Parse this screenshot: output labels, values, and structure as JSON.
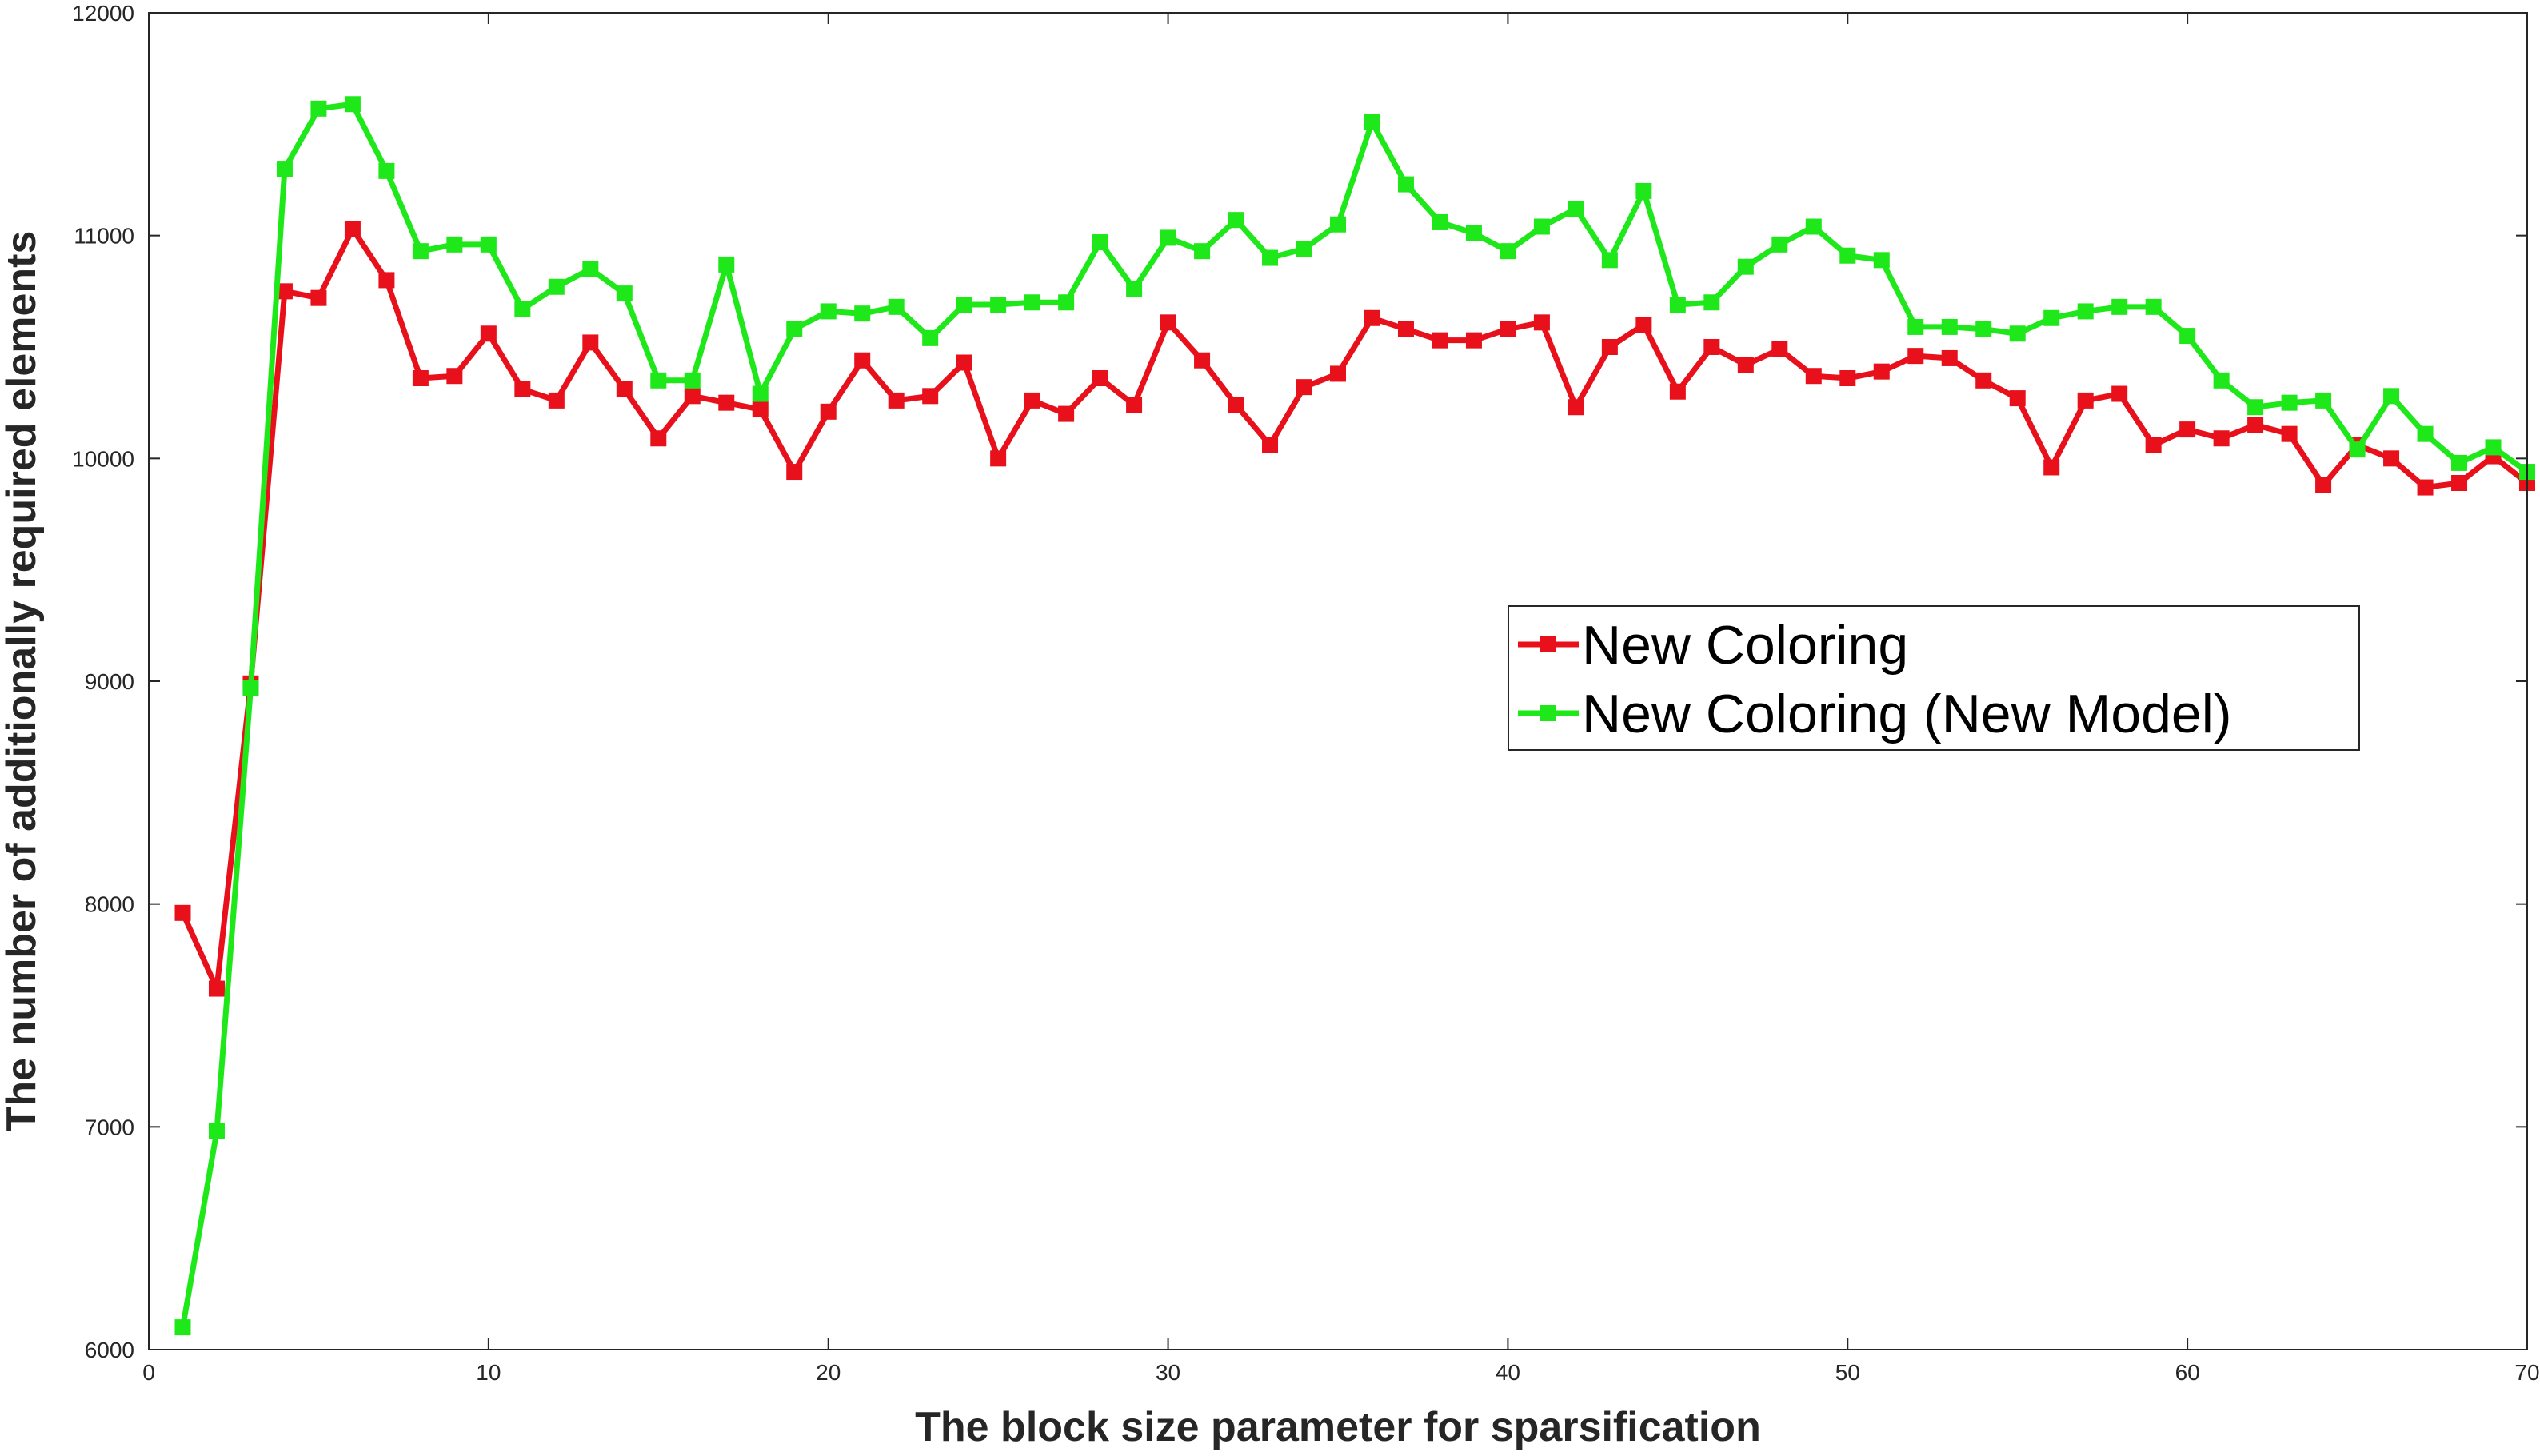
{
  "chart_data": {
    "type": "line",
    "xlabel": "The block size parameter for sparsification",
    "ylabel": "The number of additionally required elements",
    "xlim": [
      0,
      70
    ],
    "ylim": [
      6000,
      12000
    ],
    "xticks": [
      0,
      10,
      20,
      30,
      40,
      50,
      60,
      70
    ],
    "yticks": [
      6000,
      7000,
      8000,
      9000,
      10000,
      11000,
      12000
    ],
    "grid": false,
    "legend_position": "center-right",
    "x": [
      1,
      2,
      3,
      4,
      5,
      6,
      7,
      8,
      9,
      10,
      11,
      12,
      13,
      14,
      15,
      16,
      17,
      18,
      19,
      20,
      21,
      22,
      23,
      24,
      25,
      26,
      27,
      28,
      29,
      30,
      31,
      32,
      33,
      34,
      35,
      36,
      37,
      38,
      39,
      40,
      41,
      42,
      43,
      44,
      45,
      46,
      47,
      48,
      49,
      50,
      51,
      52,
      53,
      54,
      55,
      56,
      57,
      58,
      59,
      60,
      61,
      62,
      63,
      64,
      65,
      66,
      67,
      68,
      69,
      70
    ],
    "series": [
      {
        "name": "New Coloring",
        "color": "#e8101a",
        "values": [
          7960,
          7620,
          8990,
          10750,
          10720,
          11030,
          10800,
          10360,
          10370,
          10560,
          10310,
          10260,
          10520,
          10310,
          10090,
          10280,
          10250,
          10220,
          9940,
          10210,
          10440,
          10260,
          10280,
          10430,
          10000,
          10260,
          10200,
          10360,
          10240,
          10610,
          10440,
          10240,
          10060,
          10320,
          10380,
          10630,
          10580,
          10530,
          10530,
          10580,
          10610,
          10230,
          10500,
          10600,
          10300,
          10500,
          10420,
          10490,
          10370,
          10360,
          10390,
          10460,
          10450,
          10350,
          10270,
          9960,
          10260,
          10290,
          10060,
          10130,
          10090,
          10150,
          10110,
          9880,
          10060,
          10000,
          9870,
          9890,
          10010,
          9890
        ]
      },
      {
        "name": "New Coloring (New Model)",
        "color": "#1fe81a",
        "values": [
          6100,
          6980,
          8970,
          11300,
          11570,
          11590,
          11290,
          10930,
          10960,
          10960,
          10670,
          10770,
          10850,
          10740,
          10350,
          10350,
          10870,
          10290,
          10580,
          10660,
          10650,
          10680,
          10540,
          10690,
          10690,
          10700,
          10700,
          10970,
          10760,
          10990,
          10930,
          11070,
          10900,
          10940,
          11050,
          11510,
          11230,
          11060,
          11010,
          10930,
          11040,
          11120,
          10890,
          11200,
          10690,
          10700,
          10860,
          10960,
          11040,
          10910,
          10890,
          10590,
          10590,
          10580,
          10560,
          10630,
          10660,
          10680,
          10680,
          10550,
          10350,
          10230,
          10250,
          10260,
          10040,
          10280,
          10110,
          9980,
          10050,
          9940
        ]
      }
    ]
  }
}
